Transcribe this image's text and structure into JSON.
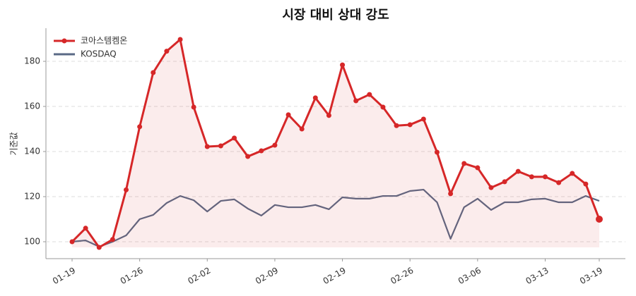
{
  "chart_data": {
    "type": "line",
    "title": "시장 대비 상대 강도",
    "y_label": "기준값",
    "categories": [
      "01-19",
      null,
      null,
      null,
      null,
      "01-26",
      null,
      null,
      null,
      null,
      "02-02",
      null,
      null,
      null,
      null,
      "02-09",
      null,
      null,
      null,
      null,
      "02-19",
      null,
      null,
      null,
      null,
      "02-26",
      null,
      null,
      null,
      null,
      "03-06",
      null,
      null,
      null,
      null,
      "03-13",
      null,
      null,
      null,
      "03-19"
    ],
    "series": [
      {
        "name": "코아스템켐온",
        "color": "#d62728",
        "marker": true,
        "fill": true,
        "values": [
          100,
          106,
          97.5,
          101,
          123,
          151,
          175,
          184.5,
          189.7,
          159.7,
          142.2,
          142.5,
          146,
          137.8,
          140.3,
          142.8,
          156.3,
          150,
          163.8,
          156,
          178.4,
          162.5,
          165.3,
          159.7,
          151.5,
          151.9,
          154.4,
          139.7,
          121.3,
          134.7,
          132.8,
          124,
          126.6,
          131.2,
          128.8,
          128.8,
          126.2,
          130.3,
          125.6,
          110
        ]
      },
      {
        "name": "KOSDAQ",
        "color": "#5a6a85",
        "marker": false,
        "fill": false,
        "values": [
          100,
          100.6,
          97.8,
          100,
          102.8,
          110,
          111.9,
          117.2,
          120.3,
          118.4,
          113.4,
          118.1,
          118.8,
          114.7,
          111.6,
          116.3,
          115.3,
          115.3,
          116.3,
          114.4,
          119.7,
          119.1,
          119.1,
          120.3,
          120.3,
          122.5,
          123.1,
          117.5,
          101.3,
          115.3,
          119.1,
          114.1,
          117.5,
          117.5,
          118.8,
          119.1,
          117.5,
          117.5,
          120.3,
          118.1
        ]
      }
    ],
    "ylim": [
      92.5,
      194.7
    ],
    "yticks": [
      100,
      120,
      140,
      160,
      180
    ],
    "grid": true,
    "legend": "upper-left"
  }
}
